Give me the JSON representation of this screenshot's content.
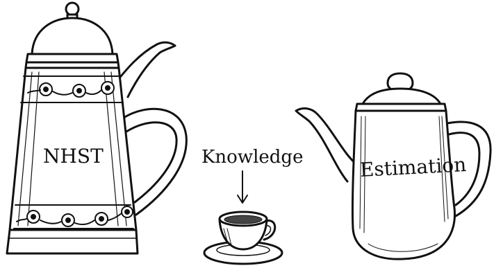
{
  "labels": {
    "left_pot": "NHST",
    "center_cup": "Knowledge",
    "right_pot": "Estimation"
  },
  "colors": {
    "ink": "#111111",
    "background": "#ffffff"
  }
}
